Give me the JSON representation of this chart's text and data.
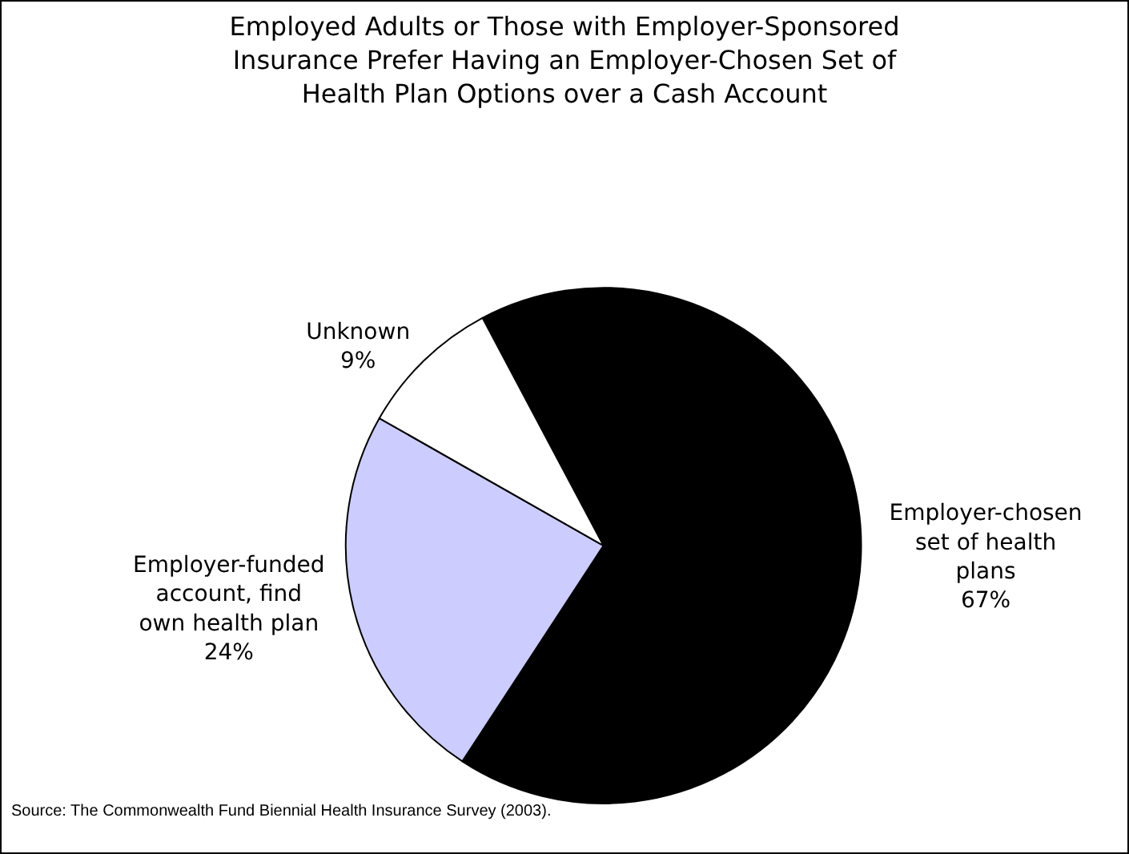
{
  "chart_data": {
    "type": "pie",
    "title": "Employed Adults or Those with Employer-Sponsored Insurance Prefer Having an Employer-Chosen Set of Health Plan Options over a Cash Account",
    "categories": [
      "Employer-chosen set of health plans",
      "Employer-funded account, find own health plan",
      "Unknown"
    ],
    "values": [
      67,
      24,
      9
    ],
    "value_labels": [
      "67%",
      "24%",
      "9%"
    ],
    "colors": [
      "#000000",
      "#ccccff",
      "#ffffff"
    ],
    "annotations": [
      "Source: The Commonwealth Fund Biennial Health Insurance Survey (2003)."
    ]
  }
}
